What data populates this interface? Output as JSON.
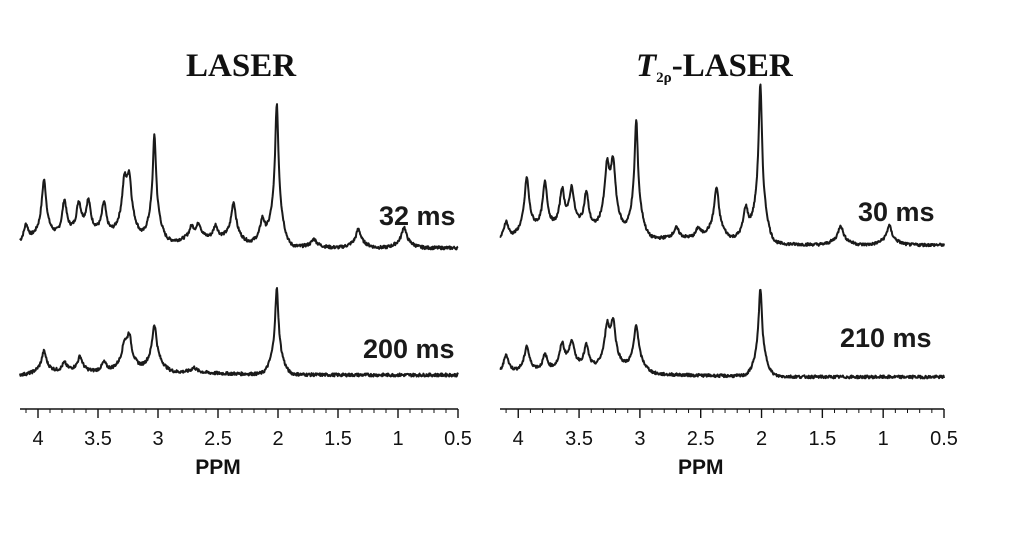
{
  "chart_data": [
    {
      "type": "line",
      "title": "LASER",
      "xlabel": "PPM",
      "ylabel": "",
      "x_reversed": true,
      "xlim": [
        4.15,
        0.5
      ],
      "xticks": [
        "4",
        "3.5",
        "3",
        "2.5",
        "2",
        "1.5",
        "1",
        "0.5"
      ],
      "xtick_values": [
        4,
        3.5,
        3,
        2.5,
        2,
        1.5,
        1,
        0.5
      ],
      "series": [
        {
          "name": "32 ms",
          "peaks": [
            {
              "ppm": 4.1,
              "height": 0.2
            },
            {
              "ppm": 3.95,
              "height": 0.62
            },
            {
              "ppm": 3.78,
              "height": 0.4
            },
            {
              "ppm": 3.66,
              "height": 0.33
            },
            {
              "ppm": 3.58,
              "height": 0.35
            },
            {
              "ppm": 3.45,
              "height": 0.36
            },
            {
              "ppm": 3.28,
              "height": 0.45
            },
            {
              "ppm": 3.24,
              "height": 0.5
            },
            {
              "ppm": 3.03,
              "height": 1.0
            },
            {
              "ppm": 2.72,
              "height": 0.12
            },
            {
              "ppm": 2.66,
              "height": 0.15
            },
            {
              "ppm": 2.52,
              "height": 0.16
            },
            {
              "ppm": 2.37,
              "height": 0.4
            },
            {
              "ppm": 2.13,
              "height": 0.25
            },
            {
              "ppm": 2.01,
              "height": 1.35
            },
            {
              "ppm": 1.7,
              "height": 0.08
            },
            {
              "ppm": 1.33,
              "height": 0.18
            },
            {
              "ppm": 0.95,
              "height": 0.2
            }
          ]
        },
        {
          "name": "200 ms",
          "peaks": [
            {
              "ppm": 3.95,
              "height": 0.22
            },
            {
              "ppm": 3.78,
              "height": 0.1
            },
            {
              "ppm": 3.65,
              "height": 0.16
            },
            {
              "ppm": 3.45,
              "height": 0.1
            },
            {
              "ppm": 3.28,
              "height": 0.2
            },
            {
              "ppm": 3.24,
              "height": 0.3
            },
            {
              "ppm": 3.03,
              "height": 0.45
            },
            {
              "ppm": 2.7,
              "height": 0.05
            },
            {
              "ppm": 2.01,
              "height": 0.82
            }
          ]
        }
      ]
    },
    {
      "type": "line",
      "title": "T2ρ-LASER",
      "title_italic": "T",
      "title_subscript": "2ρ",
      "title_rest": "-LASER",
      "xlabel": "PPM",
      "ylabel": "",
      "x_reversed": true,
      "xlim": [
        4.15,
        0.5
      ],
      "xticks": [
        "4",
        "3.5",
        "3",
        "2.5",
        "2",
        "1.5",
        "1",
        "0.5"
      ],
      "xtick_values": [
        4,
        3.5,
        3,
        2.5,
        2,
        1.5,
        1,
        0.5
      ],
      "series": [
        {
          "name": "30 ms",
          "peaks": [
            {
              "ppm": 4.1,
              "height": 0.22
            },
            {
              "ppm": 3.93,
              "height": 0.65
            },
            {
              "ppm": 3.78,
              "height": 0.58
            },
            {
              "ppm": 3.64,
              "height": 0.45
            },
            {
              "ppm": 3.56,
              "height": 0.45
            },
            {
              "ppm": 3.44,
              "height": 0.45
            },
            {
              "ppm": 3.27,
              "height": 0.6
            },
            {
              "ppm": 3.22,
              "height": 0.65
            },
            {
              "ppm": 3.03,
              "height": 1.2
            },
            {
              "ppm": 2.7,
              "height": 0.12
            },
            {
              "ppm": 2.52,
              "height": 0.12
            },
            {
              "ppm": 2.37,
              "height": 0.55
            },
            {
              "ppm": 2.13,
              "height": 0.35
            },
            {
              "ppm": 2.01,
              "height": 1.6
            },
            {
              "ppm": 1.35,
              "height": 0.2
            },
            {
              "ppm": 0.95,
              "height": 0.2
            }
          ]
        },
        {
          "name": "210 ms",
          "peaks": [
            {
              "ppm": 4.1,
              "height": 0.22
            },
            {
              "ppm": 3.93,
              "height": 0.3
            },
            {
              "ppm": 3.78,
              "height": 0.2
            },
            {
              "ppm": 3.64,
              "height": 0.28
            },
            {
              "ppm": 3.56,
              "height": 0.3
            },
            {
              "ppm": 3.44,
              "height": 0.28
            },
            {
              "ppm": 3.27,
              "height": 0.4
            },
            {
              "ppm": 3.22,
              "height": 0.45
            },
            {
              "ppm": 3.03,
              "height": 0.5
            },
            {
              "ppm": 2.01,
              "height": 0.9
            }
          ]
        }
      ]
    }
  ]
}
